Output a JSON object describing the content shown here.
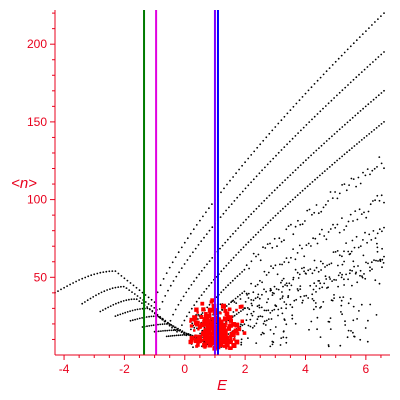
{
  "chart_data": {
    "type": "scatter",
    "title": "",
    "xlabel": "E",
    "ylabel": "<n>",
    "xlim": [
      -4.3,
      6.8
    ],
    "ylim": [
      0,
      222
    ],
    "grid": false,
    "legend": "none",
    "x_ticks": [
      -4,
      -2,
      0,
      2,
      4,
      6
    ],
    "y_ticks": [
      50,
      100,
      150,
      200
    ],
    "colors": {
      "axis": "#e8001c",
      "tick_labels": "#e8001c",
      "spectrum_points": "#000000",
      "highlight_points": "#ff0000",
      "line_green": "#007a00",
      "line_magenta": "#e000e0",
      "line_purple": "#7a00ff",
      "line_blue": "#0000ff"
    },
    "vertical_lines": [
      {
        "name": "green",
        "x": -1.35
      },
      {
        "name": "magenta",
        "x": -0.95
      },
      {
        "name": "purple",
        "x": 1.0
      },
      {
        "name": "blue",
        "x": 1.1
      }
    ],
    "bands": [
      {
        "x0": -4.3,
        "y0": 40,
        "xpeak": -2.3,
        "ypeak": 54,
        "xbend": -1.0,
        "ybend": 34,
        "x1": 6.6,
        "y1": 220
      },
      {
        "x0": -3.4,
        "y0": 33,
        "xpeak": -2.0,
        "ypeak": 44,
        "xbend": -0.85,
        "ybend": 28,
        "x1": 6.6,
        "y1": 195
      },
      {
        "x0": -2.8,
        "y0": 28,
        "xpeak": -1.6,
        "ypeak": 36,
        "xbend": -0.5,
        "ybend": 20,
        "x1": 6.6,
        "y1": 170
      },
      {
        "x0": -2.3,
        "y0": 25,
        "xpeak": -1.2,
        "ypeak": 30,
        "xbend": -0.2,
        "ybend": 14,
        "x1": 6.6,
        "y1": 150
      },
      {
        "x0": -1.8,
        "y0": 22,
        "xpeak": -0.9,
        "ypeak": 25,
        "xbend": 0.1,
        "ybend": 12,
        "x1": 6.6,
        "y1": 125
      },
      {
        "x0": -1.4,
        "y0": 18,
        "xpeak": -0.5,
        "ypeak": 20,
        "xbend": 0.4,
        "ybend": 10,
        "x1": 6.6,
        "y1": 100
      },
      {
        "x0": -1.0,
        "y0": 15,
        "xpeak": -0.2,
        "ypeak": 16,
        "xbend": 0.7,
        "ybend": 8,
        "x1": 6.6,
        "y1": 80
      },
      {
        "x0": -0.6,
        "y0": 12,
        "xpeak": 0.2,
        "ypeak": 13,
        "xbend": 1.0,
        "ybend": 6,
        "x1": 6.6,
        "y1": 60
      }
    ],
    "red_cluster": {
      "center_x": 1.0,
      "center_y": 18,
      "spread_x": 0.7,
      "spread_y": 14,
      "count": 260
    }
  }
}
